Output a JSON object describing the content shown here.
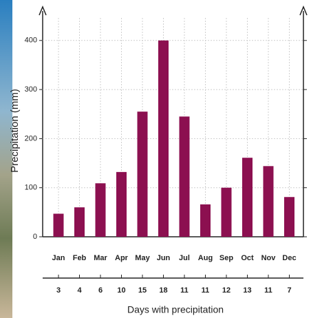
{
  "chart_data": {
    "type": "bar",
    "y_label": "Precipitation (mm)",
    "categories": [
      "Jan",
      "Feb",
      "Mar",
      "Apr",
      "May",
      "Jun",
      "Jul",
      "Aug",
      "Sep",
      "Oct",
      "Nov",
      "Dec"
    ],
    "values": [
      47,
      60,
      109,
      132,
      255,
      400,
      245,
      66,
      100,
      161,
      144,
      81
    ],
    "color": "#8c1050",
    "ylim": [
      0,
      460
    ],
    "yticks": [
      0,
      100,
      200,
      300,
      400
    ],
    "grid": true,
    "days": {
      "label": "Days with precipitation",
      "values": [
        3,
        4,
        6,
        10,
        15,
        18,
        11,
        11,
        12,
        13,
        11,
        7
      ]
    }
  }
}
